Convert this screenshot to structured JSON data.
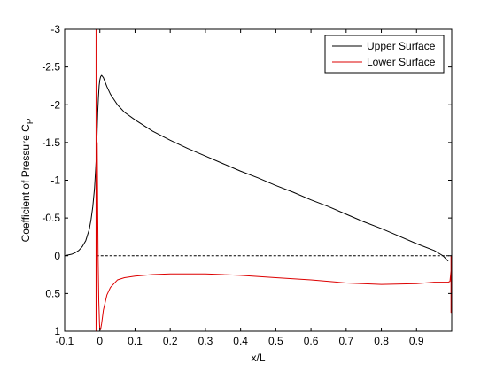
{
  "chart_data": {
    "type": "line",
    "xlabel": "x/L",
    "ylabel": "Coefficient of Pressure C",
    "ylabel_sub": "P",
    "xlim": [
      -0.1,
      1.0
    ],
    "ylim": [
      -3,
      1
    ],
    "y_reversed": true,
    "grid": false,
    "legend_position": "top-right",
    "xticks": [
      -0.1,
      0,
      0.1,
      0.2,
      0.3,
      0.4,
      0.5,
      0.6,
      0.7,
      0.8,
      0.9
    ],
    "xtick_labels": [
      "-0.1",
      "0",
      "0.1",
      "0.2",
      "0.3",
      "0.4",
      "0.5",
      "0.6",
      "0.7",
      "0.8",
      "0.9"
    ],
    "yticks": [
      -3,
      -2.5,
      -2,
      -1.5,
      -1,
      -0.5,
      0,
      0.5,
      1
    ],
    "ytick_labels": [
      "-3",
      "-2.5",
      "-2",
      "-1.5",
      "-1",
      "-0.5",
      "0",
      "0.5",
      "1"
    ],
    "series": [
      {
        "name": "Upper Surface",
        "color": "#000000",
        "x": [
          -0.1,
          -0.09,
          -0.08,
          -0.07,
          -0.06,
          -0.05,
          -0.04,
          -0.03,
          -0.025,
          -0.02,
          -0.015,
          -0.01,
          -0.008,
          -0.006,
          -0.004,
          -0.002,
          0.0,
          0.002,
          0.005,
          0.01,
          0.02,
          0.03,
          0.05,
          0.07,
          0.1,
          0.15,
          0.2,
          0.25,
          0.3,
          0.35,
          0.4,
          0.45,
          0.5,
          0.55,
          0.6,
          0.65,
          0.7,
          0.75,
          0.8,
          0.85,
          0.9,
          0.95,
          0.975,
          0.99
        ],
        "y": [
          0.0,
          -0.01,
          -0.02,
          -0.04,
          -0.07,
          -0.12,
          -0.2,
          -0.35,
          -0.48,
          -0.65,
          -0.9,
          -1.3,
          -1.6,
          -1.9,
          -2.1,
          -2.25,
          -2.33,
          -2.37,
          -2.39,
          -2.36,
          -2.24,
          -2.14,
          -2.0,
          -1.9,
          -1.8,
          -1.65,
          -1.53,
          -1.42,
          -1.32,
          -1.22,
          -1.12,
          -1.03,
          -0.93,
          -0.84,
          -0.74,
          -0.65,
          -0.55,
          -0.45,
          -0.36,
          -0.26,
          -0.16,
          -0.07,
          0.0,
          0.07
        ]
      },
      {
        "name": "Lower Surface",
        "color": "#dd0000",
        "x": [
          -0.0108,
          -0.0108,
          -0.0075,
          -0.005,
          -0.003,
          -0.001,
          0.0,
          0.002,
          0.005,
          0.01,
          0.02,
          0.03,
          0.05,
          0.07,
          0.1,
          0.15,
          0.2,
          0.25,
          0.3,
          0.35,
          0.4,
          0.5,
          0.6,
          0.7,
          0.8,
          0.9,
          0.95,
          0.975,
          0.99,
          0.995,
          0.998,
          0.998,
          0.998
        ],
        "y": [
          -3.0,
          1.0,
          -1.5,
          0.0,
          0.6,
          0.9,
          0.98,
          0.98,
          0.9,
          0.72,
          0.52,
          0.42,
          0.32,
          0.29,
          0.27,
          0.25,
          0.24,
          0.24,
          0.24,
          0.25,
          0.26,
          0.29,
          0.32,
          0.36,
          0.38,
          0.37,
          0.35,
          0.35,
          0.35,
          0.34,
          0.2,
          0.75,
          0.0
        ]
      }
    ],
    "reference_lines": [
      {
        "y": 0,
        "x_from": -0.01,
        "x_to": 1.0,
        "style": "dashed",
        "color": "#000000"
      }
    ]
  }
}
